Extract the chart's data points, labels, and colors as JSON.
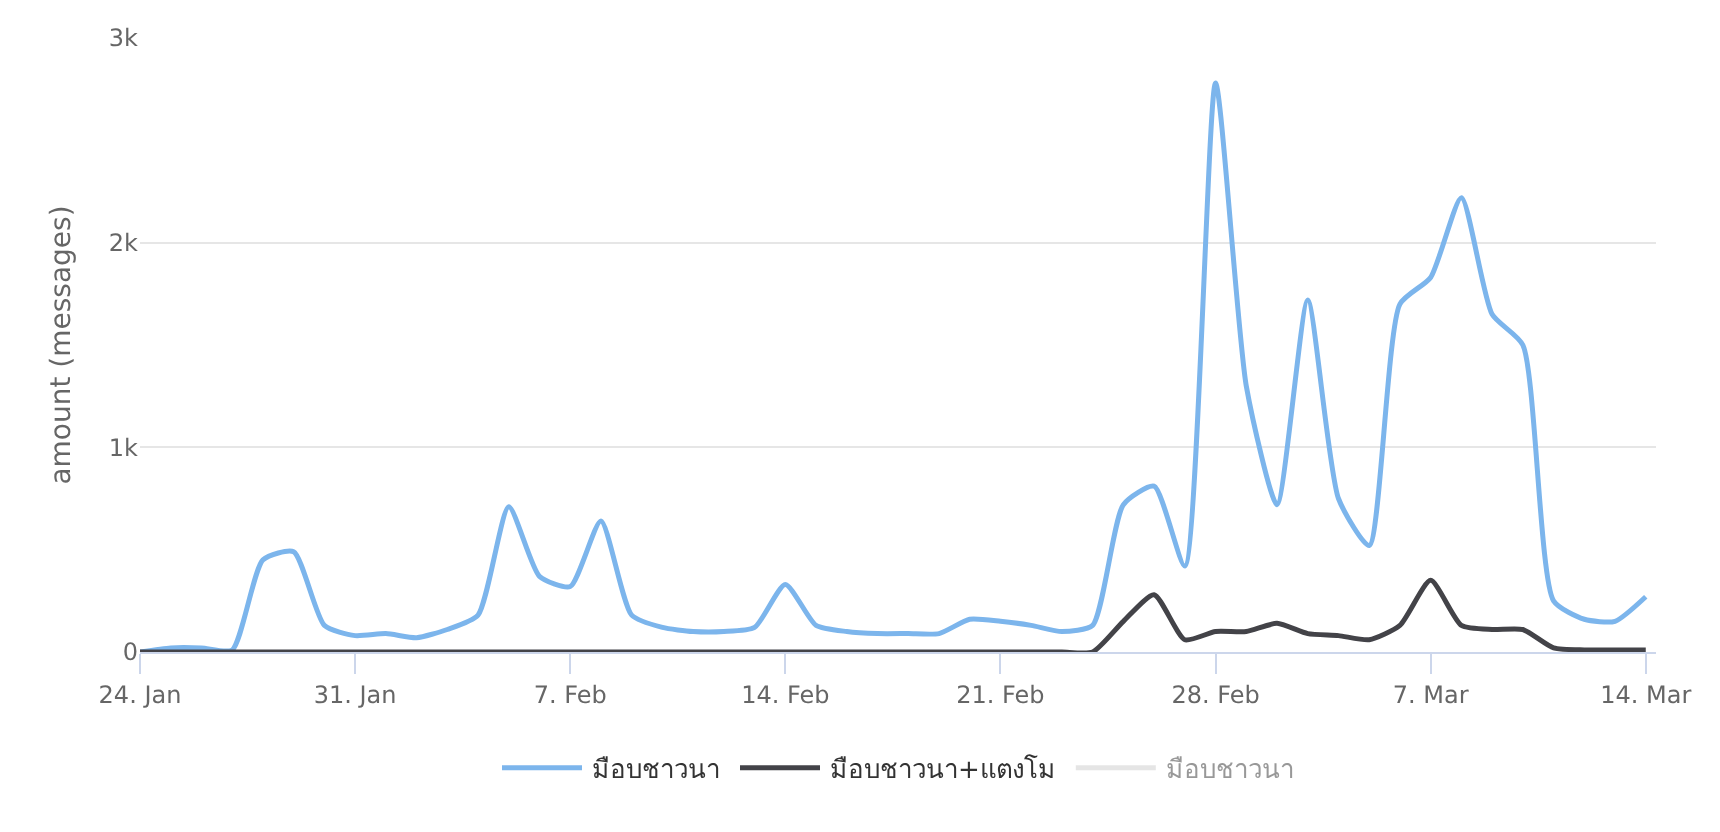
{
  "chart_data": {
    "type": "line",
    "ylabel": "amount (messages)",
    "x": [
      "--01-24",
      "--01-25",
      "--01-26",
      "--01-27",
      "--01-28",
      "--01-29",
      "--01-30",
      "--01-31",
      "--02-01",
      "--02-02",
      "--02-03",
      "--02-04",
      "--02-05",
      "--02-06",
      "--02-07",
      "--02-08",
      "--02-09",
      "--02-10",
      "--02-11",
      "--02-12",
      "--02-13",
      "--02-14",
      "--02-15",
      "--02-16",
      "--02-17",
      "--02-18",
      "--02-19",
      "--02-20",
      "--02-21",
      "--02-22",
      "--02-23",
      "--02-24",
      "--02-25",
      "--02-26",
      "--02-27",
      "--02-28",
      "--03-01",
      "--03-02",
      "--03-03",
      "--03-04",
      "--03-05",
      "--03-06",
      "--03-07",
      "--03-08",
      "--03-09",
      "--03-10",
      "--03-11",
      "--03-12",
      "--03-13",
      "--03-14"
    ],
    "series": [
      {
        "name": "มือบชาวนา",
        "color": "#7cb5ec",
        "values": [
          0,
          20,
          20,
          10,
          450,
          490,
          130,
          80,
          90,
          70,
          110,
          180,
          710,
          370,
          320,
          640,
          180,
          120,
          100,
          100,
          120,
          330,
          130,
          100,
          90,
          90,
          90,
          160,
          150,
          130,
          100,
          130,
          720,
          810,
          420,
          2780,
          1300,
          720,
          1720,
          750,
          520,
          1700,
          1830,
          2220,
          1650,
          1500,
          250,
          160,
          150,
          270
        ]
      },
      {
        "name": "มือบชาวนา+แตงโม",
        "color": "#434348",
        "values": [
          0,
          0,
          0,
          0,
          0,
          0,
          0,
          0,
          0,
          0,
          0,
          0,
          0,
          0,
          0,
          0,
          0,
          0,
          0,
          0,
          0,
          0,
          0,
          0,
          0,
          0,
          0,
          0,
          0,
          0,
          0,
          0,
          150,
          280,
          60,
          100,
          100,
          140,
          90,
          80,
          60,
          130,
          350,
          130,
          110,
          110,
          20,
          10,
          10,
          10
        ]
      },
      {
        "name": "มือบชาวนา",
        "color": "#cccccc",
        "values": [
          null,
          null,
          null,
          null,
          null,
          null,
          null,
          null,
          null,
          null,
          null,
          null,
          null,
          null,
          null,
          null,
          null,
          null,
          null,
          null,
          null,
          null,
          null,
          null,
          null,
          null,
          null,
          null,
          null,
          null,
          null,
          null,
          null,
          null,
          null,
          null,
          null,
          null,
          null,
          null,
          null,
          null,
          null,
          null,
          null,
          null,
          null,
          null,
          null,
          null
        ]
      }
    ],
    "xlim": [
      "--01-24",
      "--03-14T08:00"
    ],
    "xticks": [
      {
        "value": "--01-24",
        "label": "24. Jan"
      },
      {
        "value": "--01-31",
        "label": "31. Jan"
      },
      {
        "value": "--02-07",
        "label": "7. Feb"
      },
      {
        "value": "--02-14",
        "label": "14. Feb"
      },
      {
        "value": "--02-21",
        "label": "21. Feb"
      },
      {
        "value": "--02-28",
        "label": "28. Feb"
      },
      {
        "value": "--03-07",
        "label": "7. Mar"
      },
      {
        "value": "--03-14",
        "label": "14. Mar"
      }
    ],
    "ylim": [
      0,
      3000
    ],
    "yticks": [
      0,
      {
        "value": 1000,
        "label": "1k"
      },
      {
        "value": 2000,
        "label": "2k"
      },
      {
        "value": 3000,
        "label": "3k"
      }
    ],
    "grid": "y",
    "legend": "bottom",
    "marker": "none",
    "line_style": "solid"
  }
}
